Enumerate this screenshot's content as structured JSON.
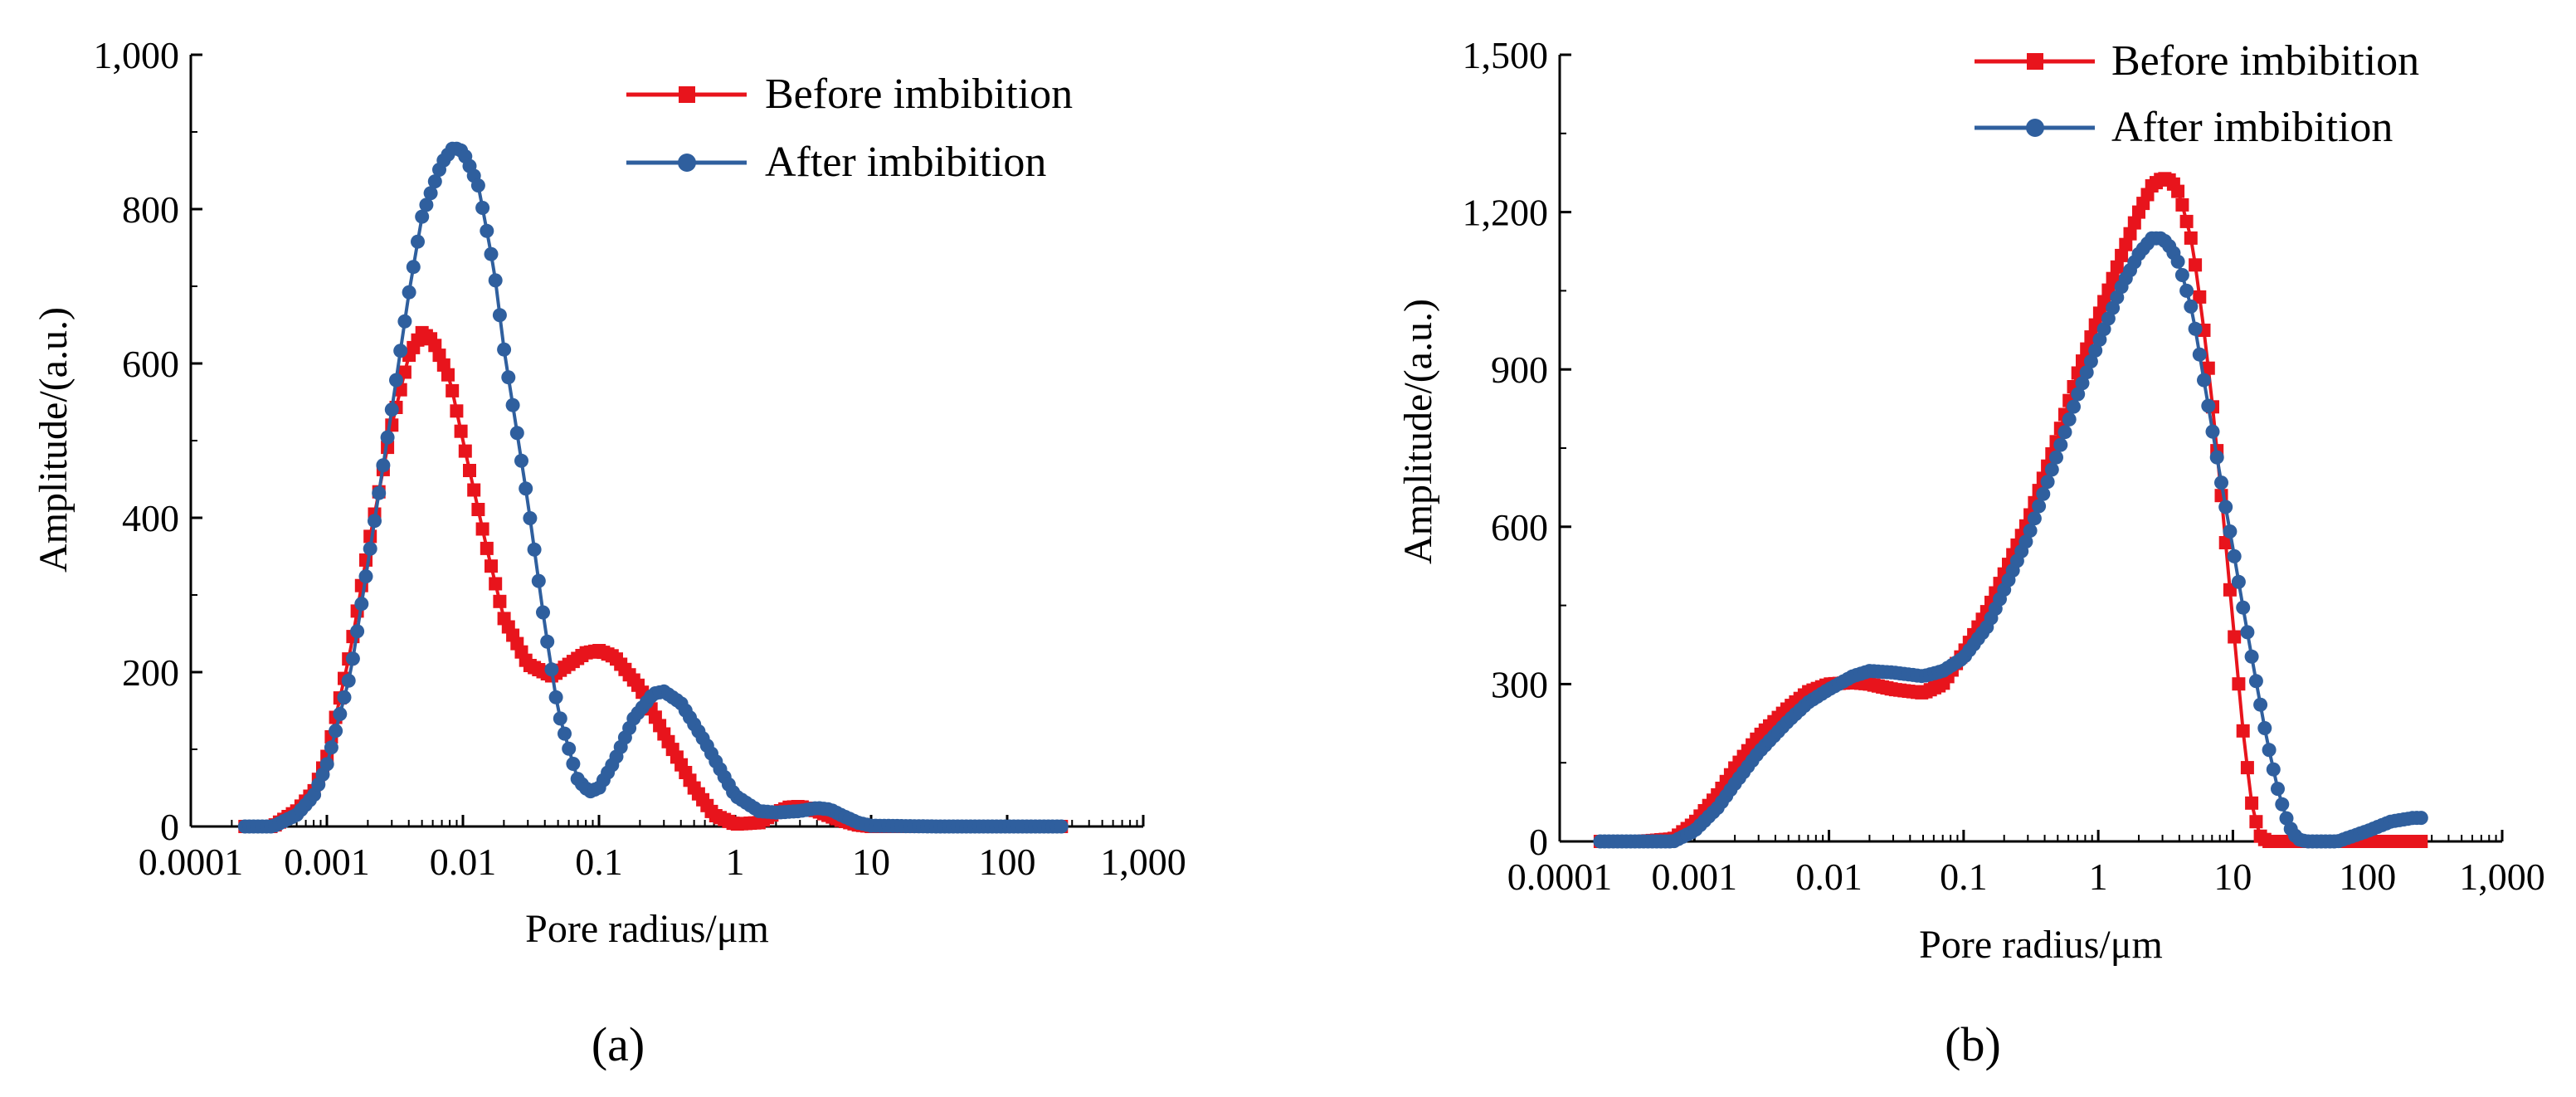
{
  "chart_data": [
    {
      "type": "line",
      "panel_label": "(a)",
      "xlabel": "Pore radius/μm",
      "ylabel": "Amplitude/(a.u.)",
      "xscale": "log",
      "xlim": [
        0.0001,
        1000
      ],
      "ylim": [
        0,
        1000
      ],
      "x_ticks": [
        0.0001,
        0.001,
        0.01,
        0.1,
        1,
        10,
        100,
        1000
      ],
      "x_tick_labels": [
        "0.0001",
        "0.001",
        "0.01",
        "0.1",
        "1",
        "10",
        "100",
        "1,000"
      ],
      "y_ticks": [
        0,
        200,
        400,
        600,
        800,
        1000
      ],
      "y_tick_labels": [
        "0",
        "200",
        "400",
        "600",
        "800",
        "1,000"
      ],
      "legend_position": "top-right",
      "series": [
        {
          "name": "Before imbibition",
          "color": "#e8141c",
          "marker": "square",
          "points": [
            [
              0.00025,
              0
            ],
            [
              0.0004,
              0
            ],
            [
              0.0006,
              20
            ],
            [
              0.0008,
              45
            ],
            [
              0.001,
              90
            ],
            [
              0.0015,
              230
            ],
            [
              0.002,
              360
            ],
            [
              0.003,
              520
            ],
            [
              0.004,
              610
            ],
            [
              0.005,
              640
            ],
            [
              0.006,
              630
            ],
            [
              0.008,
              580
            ],
            [
              0.01,
              500
            ],
            [
              0.015,
              360
            ],
            [
              0.02,
              270
            ],
            [
              0.03,
              210
            ],
            [
              0.045,
              195
            ],
            [
              0.06,
              210
            ],
            [
              0.08,
              225
            ],
            [
              0.1,
              228
            ],
            [
              0.13,
              220
            ],
            [
              0.2,
              180
            ],
            [
              0.3,
              120
            ],
            [
              0.5,
              50
            ],
            [
              0.7,
              15
            ],
            [
              1,
              3
            ],
            [
              1.5,
              5
            ],
            [
              2,
              18
            ],
            [
              2.5,
              25
            ],
            [
              3,
              26
            ],
            [
              4,
              20
            ],
            [
              6,
              8
            ],
            [
              8,
              2
            ],
            [
              10,
              0
            ],
            [
              30,
              0
            ],
            [
              100,
              0
            ],
            [
              250,
              0
            ]
          ]
        },
        {
          "name": "After imbibition",
          "color": "#2f5f9e",
          "marker": "circle",
          "points": [
            [
              0.00025,
              0
            ],
            [
              0.0004,
              0
            ],
            [
              0.0006,
              15
            ],
            [
              0.0008,
              40
            ],
            [
              0.001,
              80
            ],
            [
              0.0015,
              200
            ],
            [
              0.002,
              340
            ],
            [
              0.003,
              540
            ],
            [
              0.004,
              690
            ],
            [
              0.005,
              790
            ],
            [
              0.007,
              860
            ],
            [
              0.0085,
              880
            ],
            [
              0.01,
              875
            ],
            [
              0.013,
              830
            ],
            [
              0.017,
              720
            ],
            [
              0.02,
              620
            ],
            [
              0.03,
              420
            ],
            [
              0.04,
              260
            ],
            [
              0.05,
              150
            ],
            [
              0.07,
              60
            ],
            [
              0.085,
              45
            ],
            [
              0.1,
              50
            ],
            [
              0.13,
              85
            ],
            [
              0.18,
              140
            ],
            [
              0.25,
              172
            ],
            [
              0.3,
              175
            ],
            [
              0.4,
              160
            ],
            [
              0.6,
              110
            ],
            [
              0.8,
              70
            ],
            [
              1,
              40
            ],
            [
              1.5,
              20
            ],
            [
              2,
              18
            ],
            [
              3,
              20
            ],
            [
              4,
              24
            ],
            [
              5,
              22
            ],
            [
              6,
              15
            ],
            [
              8,
              5
            ],
            [
              10,
              1
            ],
            [
              30,
              0
            ],
            [
              100,
              0
            ],
            [
              250,
              0
            ]
          ]
        }
      ]
    },
    {
      "type": "line",
      "panel_label": "(b)",
      "xlabel": "Pore radius/μm",
      "ylabel": "Amplitude/(a.u.)",
      "xscale": "log",
      "xlim": [
        0.0001,
        1000
      ],
      "ylim": [
        0,
        1500
      ],
      "x_ticks": [
        0.0001,
        0.001,
        0.01,
        0.1,
        1,
        10,
        100,
        1000
      ],
      "x_tick_labels": [
        "0.0001",
        "0.001",
        "0.01",
        "0.1",
        "1",
        "10",
        "100",
        "1,000"
      ],
      "y_ticks": [
        0,
        300,
        600,
        900,
        1200,
        1500
      ],
      "y_tick_labels": [
        "0",
        "300",
        "600",
        "900",
        "1,200",
        "1,500"
      ],
      "legend_position": "top-right",
      "series": [
        {
          "name": "Before imbibition",
          "color": "#e8141c",
          "marker": "square",
          "points": [
            [
              0.0002,
              0
            ],
            [
              0.0004,
              0
            ],
            [
              0.0007,
              5
            ],
            [
              0.001,
              35
            ],
            [
              0.0015,
              90
            ],
            [
              0.002,
              140
            ],
            [
              0.003,
              200
            ],
            [
              0.005,
              255
            ],
            [
              0.007,
              285
            ],
            [
              0.01,
              300
            ],
            [
              0.015,
              303
            ],
            [
              0.02,
              300
            ],
            [
              0.03,
              290
            ],
            [
              0.05,
              283
            ],
            [
              0.07,
              300
            ],
            [
              0.1,
              360
            ],
            [
              0.15,
              440
            ],
            [
              0.2,
              510
            ],
            [
              0.3,
              610
            ],
            [
              0.5,
              770
            ],
            [
              0.7,
              890
            ],
            [
              1,
              1000
            ],
            [
              1.5,
              1120
            ],
            [
              2,
              1200
            ],
            [
              2.5,
              1250
            ],
            [
              3,
              1265
            ],
            [
              3.5,
              1260
            ],
            [
              4,
              1235
            ],
            [
              5,
              1140
            ],
            [
              6,
              990
            ],
            [
              7,
              840
            ],
            [
              8,
              690
            ],
            [
              10,
              420
            ],
            [
              12,
              200
            ],
            [
              14,
              60
            ],
            [
              16,
              10
            ],
            [
              18,
              0
            ],
            [
              30,
              0
            ],
            [
              100,
              0
            ],
            [
              250,
              0
            ]
          ]
        },
        {
          "name": "After imbibition",
          "color": "#2f5f9e",
          "marker": "circle",
          "points": [
            [
              0.0002,
              0
            ],
            [
              0.0004,
              0
            ],
            [
              0.0007,
              0
            ],
            [
              0.001,
              20
            ],
            [
              0.0015,
              65
            ],
            [
              0.002,
              110
            ],
            [
              0.003,
              170
            ],
            [
              0.005,
              230
            ],
            [
              0.007,
              265
            ],
            [
              0.01,
              290
            ],
            [
              0.015,
              315
            ],
            [
              0.02,
              325
            ],
            [
              0.03,
              322
            ],
            [
              0.05,
              315
            ],
            [
              0.07,
              325
            ],
            [
              0.1,
              350
            ],
            [
              0.15,
              410
            ],
            [
              0.2,
              480
            ],
            [
              0.3,
              580
            ],
            [
              0.5,
              740
            ],
            [
              0.7,
              850
            ],
            [
              1,
              950
            ],
            [
              1.5,
              1060
            ],
            [
              2,
              1120
            ],
            [
              2.5,
              1150
            ],
            [
              3,
              1150
            ],
            [
              3.5,
              1130
            ],
            [
              4,
              1100
            ],
            [
              5,
              1010
            ],
            [
              6,
              890
            ],
            [
              8,
              700
            ],
            [
              10,
              560
            ],
            [
              12,
              440
            ],
            [
              15,
              300
            ],
            [
              18,
              190
            ],
            [
              22,
              90
            ],
            [
              26,
              30
            ],
            [
              30,
              5
            ],
            [
              35,
              0
            ],
            [
              60,
              0
            ],
            [
              100,
              20
            ],
            [
              150,
              38
            ],
            [
              220,
              45
            ],
            [
              250,
              45
            ]
          ]
        }
      ]
    }
  ]
}
